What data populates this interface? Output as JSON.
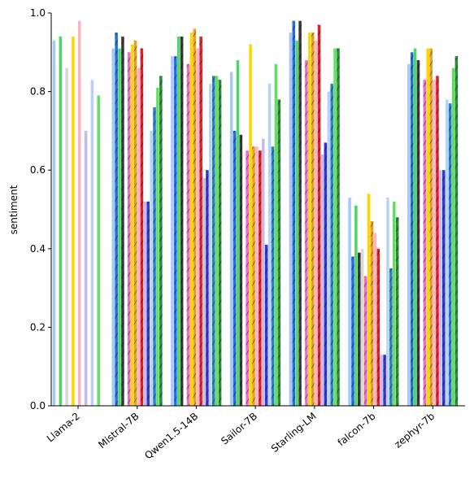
{
  "chart_data": {
    "type": "bar",
    "ylabel": "sentiment",
    "ylim": [
      0,
      1
    ],
    "yticks": [
      "0.0",
      "0.2",
      "0.4",
      "0.6",
      "0.8",
      "1.0"
    ],
    "grid": false,
    "categories": [
      "Llama-2",
      "Mistral-7B",
      "Qwen1.5-14B",
      "Sailor-7B",
      "Starling-LM",
      "falcon-7b",
      "zephyr-7b"
    ],
    "series": [
      {
        "color": "#a6c8ff",
        "hatched": false,
        "values": [
          0.93,
          0.91,
          0.89,
          0.85,
          0.95,
          0.53,
          0.87
        ]
      },
      {
        "color": "#1f6fe0",
        "hatched": true,
        "values": [
          0.0,
          0.95,
          0.89,
          0.7,
          0.98,
          0.38,
          0.9
        ]
      },
      {
        "color": "#4fd66a",
        "hatched": false,
        "values": [
          0.94,
          0.91,
          0.94,
          0.88,
          0.93,
          0.51,
          0.91
        ]
      },
      {
        "color": "#3a3a3a",
        "hatched": true,
        "values": [
          0.0,
          0.94,
          0.94,
          0.69,
          0.98,
          0.39,
          0.88
        ]
      },
      {
        "color": "#d9d9d9",
        "hatched": false,
        "values": [
          0.86,
          0.0,
          0.0,
          0.0,
          0.0,
          0.4,
          0.0
        ]
      },
      {
        "color": "#f06bd0",
        "hatched": true,
        "values": [
          0.0,
          0.9,
          0.87,
          0.65,
          0.88,
          0.33,
          0.83
        ]
      },
      {
        "color": "#ffd400",
        "hatched": false,
        "values": [
          0.94,
          0.92,
          0.95,
          0.92,
          0.95,
          0.54,
          0.91
        ]
      },
      {
        "color": "#e8a020",
        "hatched": true,
        "values": [
          0.0,
          0.93,
          0.96,
          0.66,
          0.95,
          0.47,
          0.91
        ]
      },
      {
        "color": "#ffb3c0",
        "hatched": false,
        "values": [
          0.98,
          0.86,
          0.91,
          0.66,
          0.93,
          0.44,
          0.83
        ]
      },
      {
        "color": "#e0202a",
        "hatched": true,
        "values": [
          0.0,
          0.91,
          0.94,
          0.65,
          0.97,
          0.4,
          0.84
        ]
      },
      {
        "color": "#c9b8e8",
        "hatched": false,
        "values": [
          0.7,
          0.52,
          0.58,
          0.68,
          0.64,
          0.13,
          0.6
        ]
      },
      {
        "color": "#3535d0",
        "hatched": true,
        "values": [
          0.0,
          0.52,
          0.6,
          0.41,
          0.67,
          0.13,
          0.6
        ]
      },
      {
        "color": "#b5d4f5",
        "hatched": false,
        "values": [
          0.83,
          0.7,
          0.82,
          0.82,
          0.8,
          0.53,
          0.78
        ]
      },
      {
        "color": "#2c7fc9",
        "hatched": true,
        "values": [
          0.0,
          0.76,
          0.84,
          0.66,
          0.82,
          0.35,
          0.77
        ]
      },
      {
        "color": "#5fe05f",
        "hatched": false,
        "values": [
          0.79,
          0.81,
          0.84,
          0.87,
          0.91,
          0.52,
          0.86
        ]
      },
      {
        "color": "#2e8b3a",
        "hatched": true,
        "values": [
          0.0,
          0.84,
          0.83,
          0.78,
          0.91,
          0.48,
          0.89
        ]
      }
    ]
  }
}
